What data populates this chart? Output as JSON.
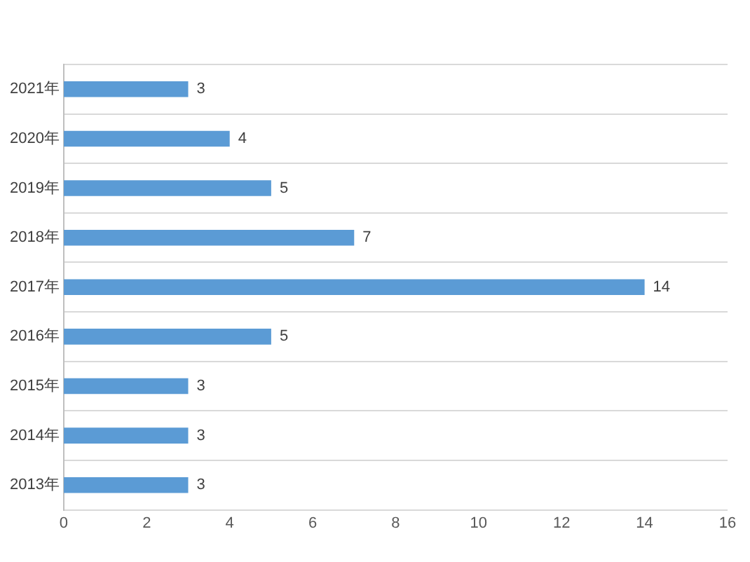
{
  "chart_data": {
    "type": "bar",
    "orientation": "horizontal",
    "categories": [
      "2021年",
      "2020年",
      "2019年",
      "2018年",
      "2017年",
      "2016年",
      "2015年",
      "2014年",
      "2013年"
    ],
    "values": [
      3,
      4,
      5,
      7,
      14,
      5,
      3,
      3,
      3
    ],
    "color": "#5b9bd5",
    "xlim": [
      0,
      16
    ],
    "xticks": [
      0,
      2,
      4,
      6,
      8,
      10,
      12,
      14,
      16
    ],
    "grid": "y",
    "data_labels": true
  }
}
